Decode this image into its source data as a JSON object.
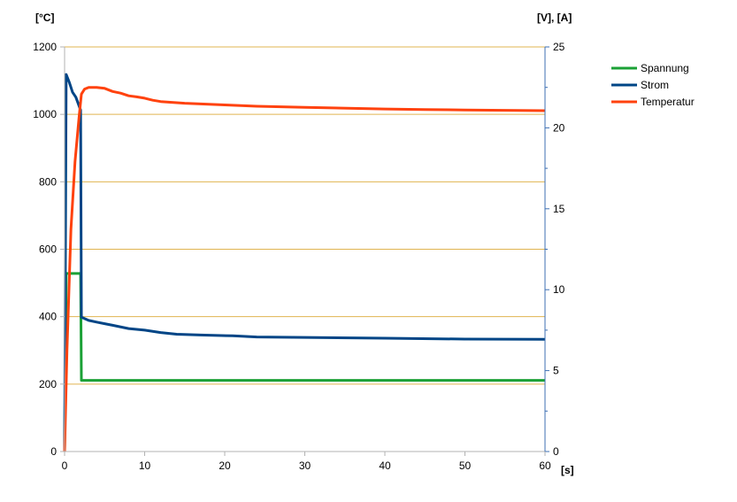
{
  "chart_data": {
    "type": "line",
    "x_unit": "[s]",
    "y_left_unit": "[°C]",
    "y_right_unit": "[V], [A]",
    "xlim": [
      0,
      60
    ],
    "ylim_left": [
      0,
      1200
    ],
    "ylim_right": [
      0,
      25
    ],
    "x_ticks": [
      0,
      10,
      20,
      30,
      40,
      50,
      60
    ],
    "y_left_ticks": [
      0,
      200,
      400,
      600,
      800,
      1000,
      1200
    ],
    "y_right_ticks": [
      0,
      5,
      10,
      15,
      20,
      25
    ],
    "grid": true,
    "legend_position": "right",
    "series": [
      {
        "name": "Spannung",
        "axis": "right",
        "color": "#1ba136",
        "points": [
          [
            0,
            0
          ],
          [
            0.2,
            11
          ],
          [
            2,
            11
          ],
          [
            2.1,
            4.4
          ],
          [
            10,
            4.4
          ],
          [
            20,
            4.4
          ],
          [
            30,
            4.4
          ],
          [
            40,
            4.4
          ],
          [
            50,
            4.4
          ],
          [
            60,
            4.4
          ]
        ]
      },
      {
        "name": "Strom",
        "axis": "right",
        "color": "#004586",
        "points": [
          [
            0,
            0
          ],
          [
            0.2,
            23.3
          ],
          [
            0.6,
            22.8
          ],
          [
            1,
            22.2
          ],
          [
            1.4,
            21.9
          ],
          [
            2,
            21.1
          ],
          [
            2.1,
            8.3
          ],
          [
            3,
            8.1
          ],
          [
            4,
            8.0
          ],
          [
            5,
            7.9
          ],
          [
            6,
            7.8
          ],
          [
            8,
            7.6
          ],
          [
            10,
            7.5
          ],
          [
            12,
            7.35
          ],
          [
            14,
            7.25
          ],
          [
            17,
            7.2
          ],
          [
            21,
            7.15
          ],
          [
            24,
            7.08
          ],
          [
            30,
            7.05
          ],
          [
            40,
            7.0
          ],
          [
            50,
            6.95
          ],
          [
            60,
            6.93
          ]
        ]
      },
      {
        "name": "Temperatur",
        "axis": "left",
        "color": "#ff420e",
        "points": [
          [
            0,
            0
          ],
          [
            0.3,
            300
          ],
          [
            0.8,
            660
          ],
          [
            1.3,
            860
          ],
          [
            1.8,
            990
          ],
          [
            2.1,
            1060
          ],
          [
            2.5,
            1075
          ],
          [
            3,
            1080
          ],
          [
            4,
            1080
          ],
          [
            5,
            1077
          ],
          [
            6,
            1068
          ],
          [
            7,
            1063
          ],
          [
            8,
            1055
          ],
          [
            9,
            1052
          ],
          [
            10,
            1048
          ],
          [
            11,
            1042
          ],
          [
            12,
            1038
          ],
          [
            15,
            1033
          ],
          [
            20,
            1028
          ],
          [
            24,
            1024
          ],
          [
            30,
            1021
          ],
          [
            40,
            1016
          ],
          [
            45,
            1014
          ],
          [
            50,
            1013
          ],
          [
            55,
            1012
          ],
          [
            60,
            1011
          ]
        ]
      }
    ]
  }
}
